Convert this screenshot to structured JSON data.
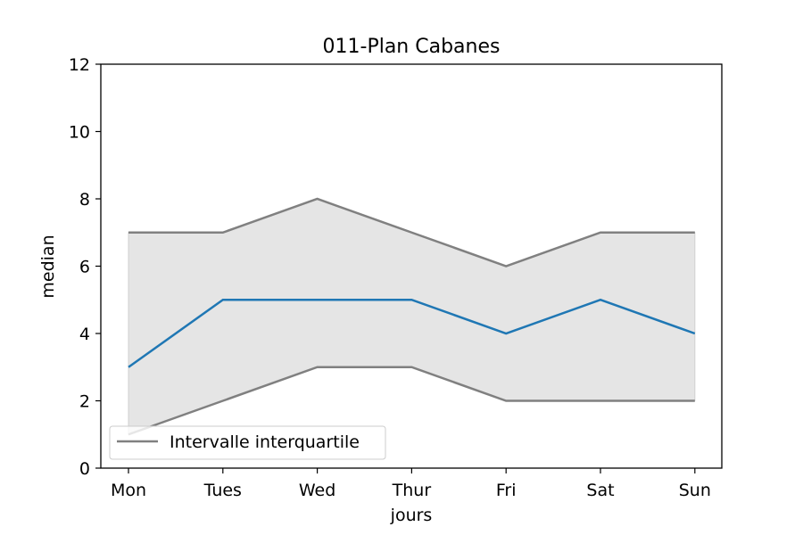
{
  "chart_data": {
    "type": "line",
    "title": "011-Plan Cabanes",
    "xlabel": "jours",
    "ylabel": "median",
    "categories": [
      "Mon",
      "Tues",
      "Wed",
      "Thur",
      "Fri",
      "Sat",
      "Sun"
    ],
    "ylim": [
      0,
      12
    ],
    "yticks": [
      0,
      2,
      4,
      6,
      8,
      10,
      12
    ],
    "series": [
      {
        "values": [
          3,
          5,
          5,
          5,
          4,
          5,
          4
        ],
        "color": "#1f77b4"
      },
      {
        "name": "Intervalle interquartile",
        "values": [
          7,
          7,
          8,
          7,
          6,
          7,
          7
        ],
        "color": "#808080"
      },
      {
        "values": [
          1,
          2,
          3,
          3,
          2,
          2,
          2
        ],
        "color": "#808080"
      }
    ],
    "band": {
      "fill": "#e5e5e5"
    },
    "legend": {
      "position": "lower-left",
      "label": "Intervalle interquartile"
    },
    "grid": false
  }
}
